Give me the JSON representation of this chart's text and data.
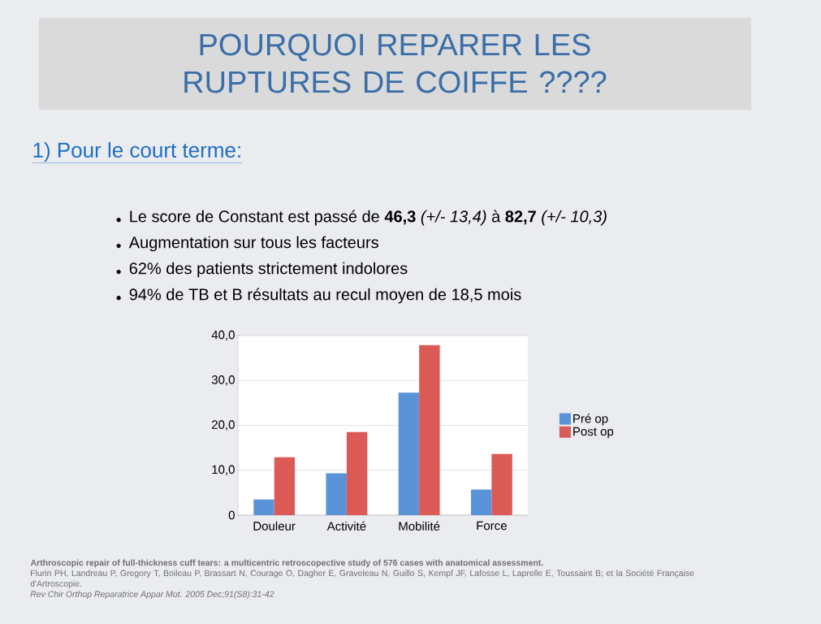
{
  "chart_data": {
    "type": "bar",
    "title": "POURQUOI REPARER LES RUPTURES DE COIFFE ????",
    "subtitle": "1) Pour le court terme:",
    "annotations": [
      "Le score de Constant est passé de **46,3** *(+/- 13,4)* à **82,7** *(+/- 10,3)*",
      "Augmentation sur tous les facteurs",
      "62% des patients strictement indolores",
      "94% de TB et B résultats au recul moyen de 18,5 mois",
      "Arthroscopic repair of full-thickness cuff tears: a multicentric retroscopective study of 576 cases with anatomical assessment.",
      "Flurin PH, Landreau P, Gregory T, Boileau P, Brassart N, Courage O, Dagher E, Graveleau N, Guillo S, Kempf JF, Lafosse L, Laprelle E, Toussaint B; et la Société Française d'Artroscopie.",
      "Rev Chir Orthop Reparatrice Appar Mot. 2005 Dec;91(S8):31-42"
    ],
    "categories": [
      "Douleur",
      "Activité",
      "Mobilité",
      "Force"
    ],
    "series": [
      {
        "name": "Pré op",
        "color": "#5b93d9",
        "values": [
          3.5,
          9.3,
          27.3,
          5.7
        ]
      },
      {
        "name": "Post op",
        "color": "#dc5a55",
        "values": [
          12.9,
          18.5,
          37.9,
          13.6
        ]
      }
    ],
    "ylim": [
      0,
      40
    ],
    "yticks": [
      0,
      {
        "value": 10,
        "label": "10,0"
      },
      {
        "value": 20,
        "label": "20,0"
      },
      {
        "value": 30,
        "label": "30,0"
      },
      {
        "value": 40,
        "label": "40,0"
      }
    ],
    "grid": "y",
    "legend": "right"
  }
}
